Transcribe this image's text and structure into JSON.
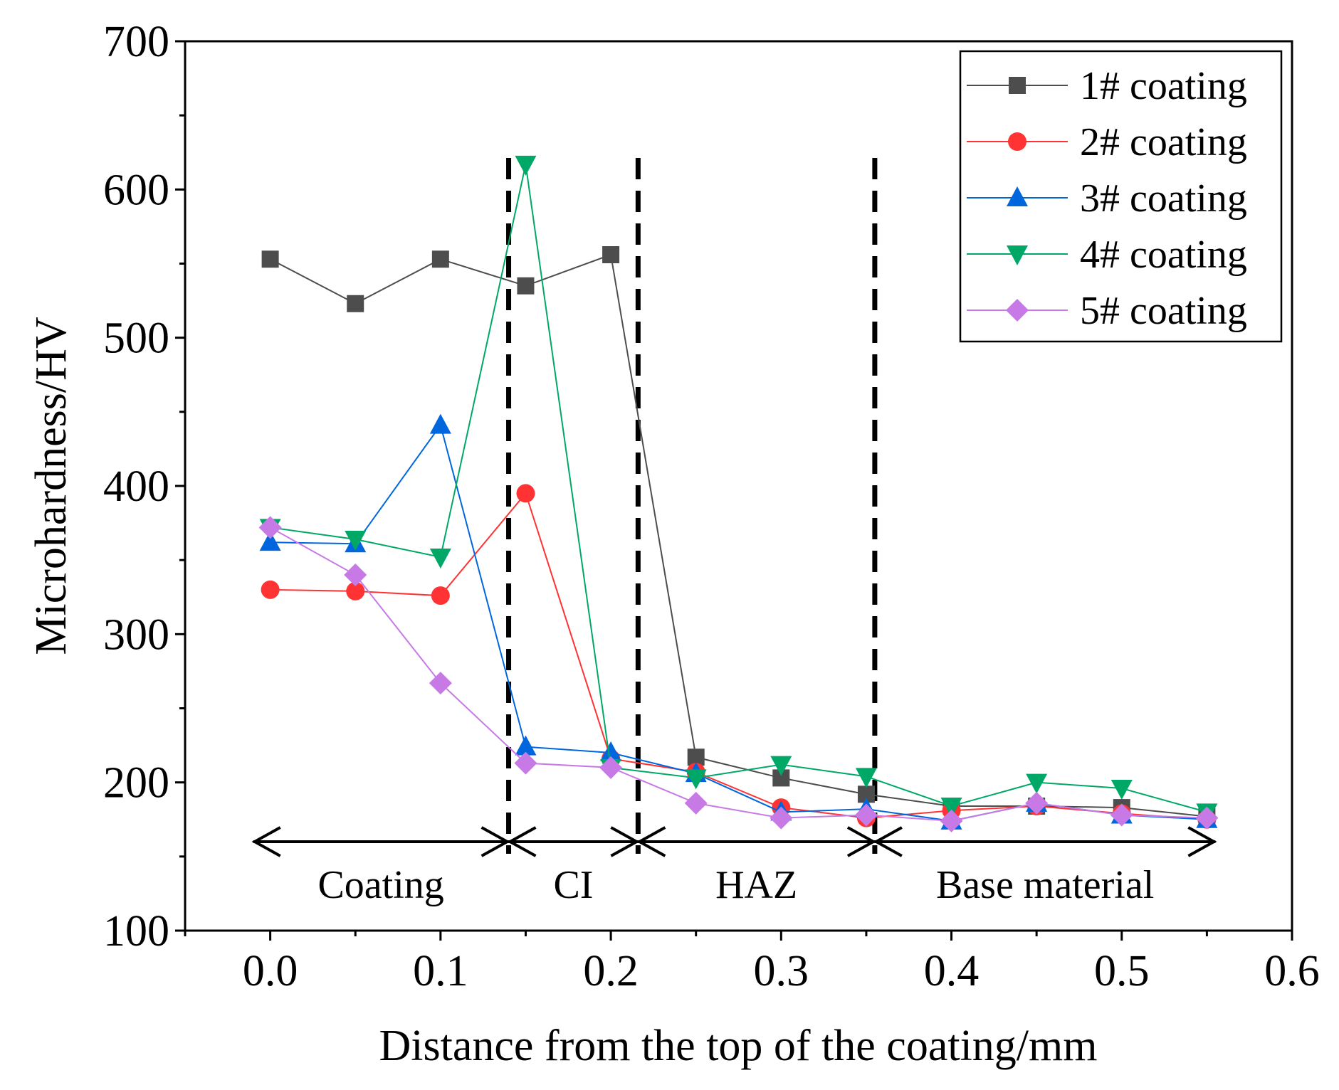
{
  "chart_data": {
    "type": "line",
    "title": "",
    "xlabel": "Distance from the top of the coating/mm",
    "ylabel": "Microhardness/HV",
    "xlim": [
      -0.05,
      0.6
    ],
    "ylim": [
      100,
      700
    ],
    "xticks": [
      "0.0",
      "0.1",
      "0.2",
      "0.3",
      "0.4",
      "0.5",
      "0.6"
    ],
    "yticks": [
      "100",
      "200",
      "300",
      "400",
      "500",
      "600",
      "700"
    ],
    "x": [
      0.0,
      0.05,
      0.1,
      0.15,
      0.2,
      0.25,
      0.3,
      0.35,
      0.4,
      0.45,
      0.5,
      0.55
    ],
    "series": [
      {
        "name": "1# coating",
        "color": "#4d4d4d",
        "marker": "square",
        "values": [
          553,
          523,
          553,
          535,
          556,
          217,
          203,
          192,
          184,
          184,
          183,
          177
        ]
      },
      {
        "name": "2# coating",
        "color": "#ff3333",
        "marker": "circle",
        "values": [
          330,
          329,
          326,
          395,
          216,
          207,
          183,
          176,
          181,
          184,
          179,
          175
        ]
      },
      {
        "name": "3# coating",
        "color": "#0066dd",
        "marker": "triangle-up",
        "values": [
          362,
          361,
          441,
          224,
          220,
          206,
          180,
          182,
          174,
          186,
          178,
          175
        ]
      },
      {
        "name": "4# coating",
        "color": "#00a867",
        "marker": "triangle-down",
        "values": [
          372,
          364,
          352,
          617,
          210,
          203,
          212,
          204,
          184,
          200,
          196,
          180
        ]
      },
      {
        "name": "5# coating",
        "color": "#c77ae6",
        "marker": "diamond",
        "values": [
          372,
          340,
          267,
          213,
          210,
          186,
          176,
          178,
          174,
          186,
          178,
          176
        ]
      }
    ],
    "boundaries": [
      0.14,
      0.216,
      0.355
    ],
    "regions": [
      {
        "label": "Coating",
        "from": -0.01,
        "to": 0.14
      },
      {
        "label": "CI",
        "from": 0.14,
        "to": 0.216
      },
      {
        "label": "HAZ",
        "from": 0.216,
        "to": 0.355
      },
      {
        "label": "Base material",
        "from": 0.355,
        "to": 0.555
      }
    ],
    "legend_position": "top-right",
    "grid": false
  }
}
